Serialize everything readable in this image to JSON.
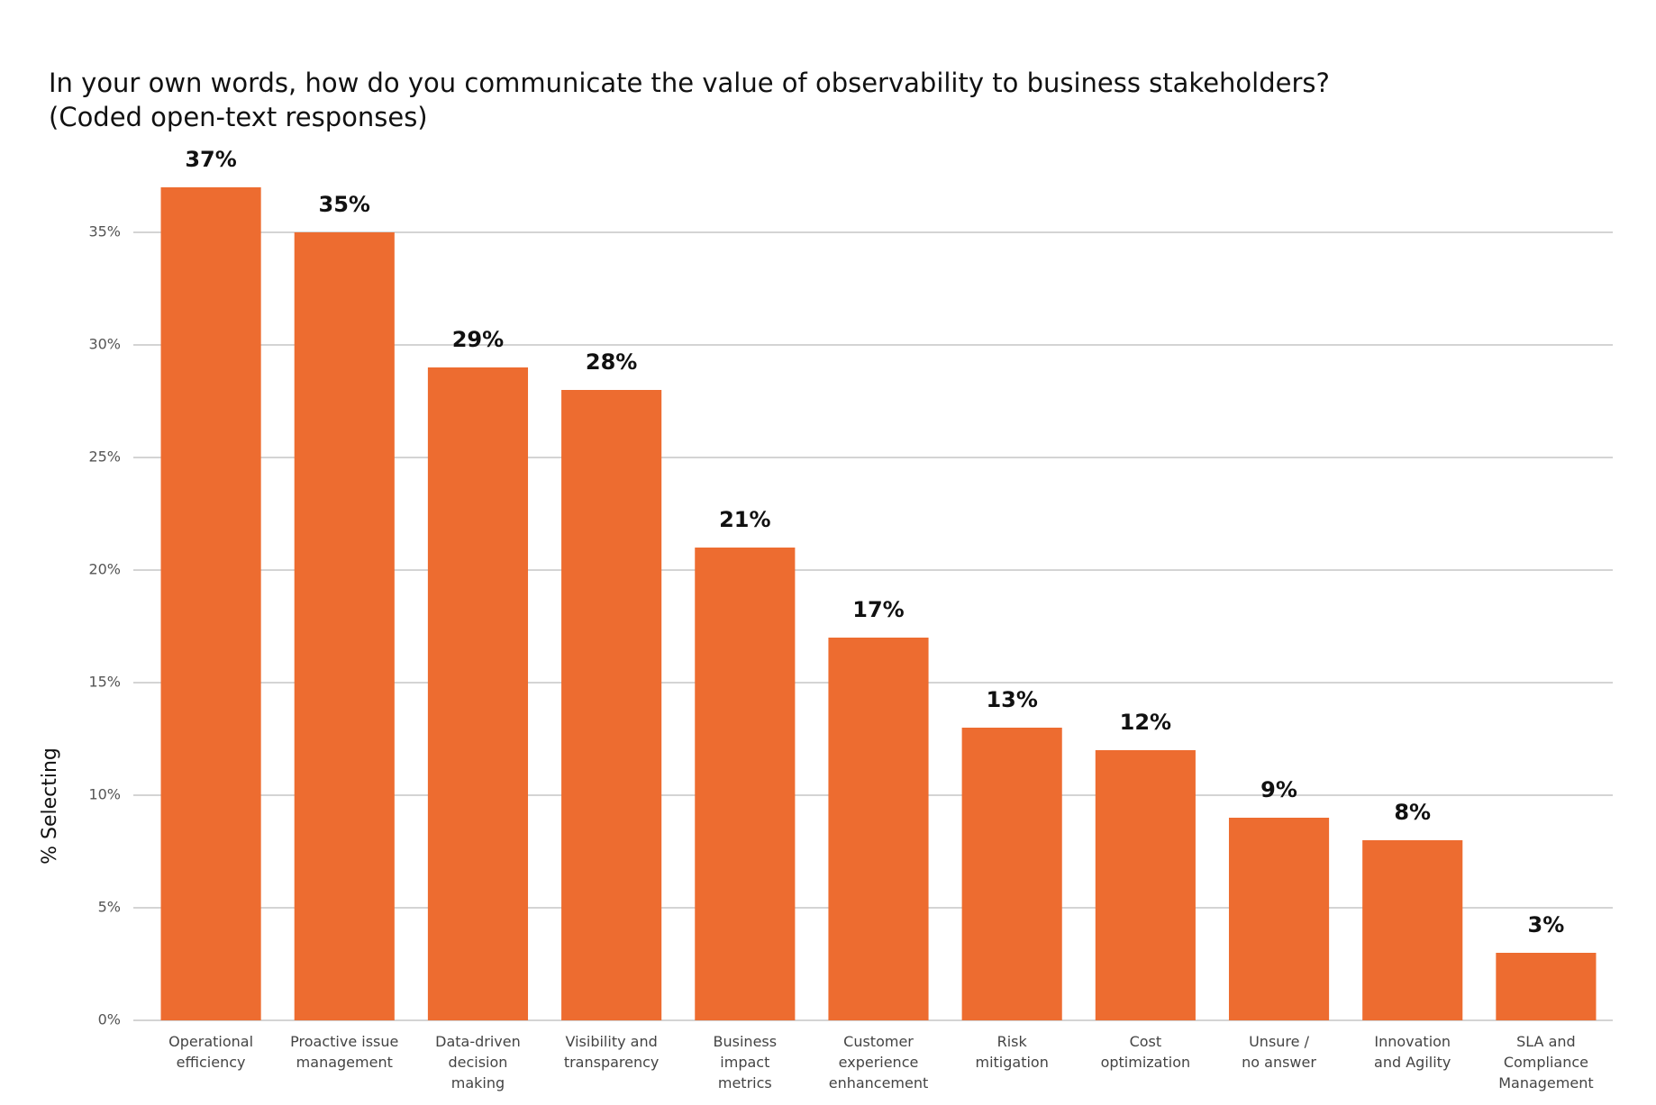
{
  "chart_data": {
    "type": "bar",
    "title": "In your own words, how do you communicate the value of observability to business stakeholders?",
    "subtitle": "(Coded open-text responses)",
    "y_label": "% Selecting",
    "categories": [
      "Operational\nefficiency",
      "Proactive issue\nmanagement",
      "Data-driven\ndecision\nmaking",
      "Visibility and\ntransparency",
      "Business\nimpact\nmetrics",
      "Customer\nexperience\nenhancement",
      "Risk\nmitigation",
      "Cost\noptimization",
      "Unsure /\nno answer",
      "Innovation\nand Agility",
      "SLA and\nCompliance\nManagement"
    ],
    "values": [
      37,
      35,
      29,
      28,
      21,
      17,
      13,
      12,
      9,
      8,
      3
    ],
    "value_labels": [
      "37%",
      "35%",
      "29%",
      "28%",
      "21%",
      "17%",
      "13%",
      "12%",
      "9%",
      "8%",
      "3%"
    ],
    "color": "#ed6c30",
    "ylim": [
      0,
      38
    ],
    "yticks": [
      {
        "value": 0,
        "label": "0%"
      },
      {
        "value": 5,
        "label": "5%"
      },
      {
        "value": 10,
        "label": "10%"
      },
      {
        "value": 15,
        "label": "15%"
      },
      {
        "value": 20,
        "label": "20%"
      },
      {
        "value": 25,
        "label": "25%"
      },
      {
        "value": 30,
        "label": "30%"
      },
      {
        "value": 35,
        "label": "35%"
      }
    ],
    "grid": true
  }
}
